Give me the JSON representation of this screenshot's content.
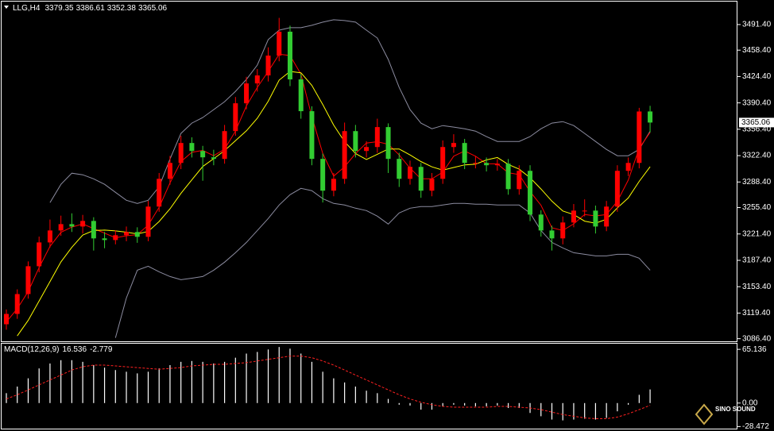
{
  "chart_data": [
    {
      "type": "candlestick",
      "title": "LLG,H4",
      "up_color": "#ff0000",
      "down_color": "#32cd32",
      "ylim": [
        3083,
        3521
      ],
      "yticks": [
        {
          "value": 3491.4,
          "label": "3491.40"
        },
        {
          "value": 3458.4,
          "label": "3458.40"
        },
        {
          "value": 3424.4,
          "label": "3424.40"
        },
        {
          "value": 3390.4,
          "label": "3390.40"
        },
        {
          "value": 3356.4,
          "label": "3356.40"
        },
        {
          "value": 3322.4,
          "label": "3322.40"
        },
        {
          "value": 3288.4,
          "label": "3288.40"
        },
        {
          "value": 3255.4,
          "label": "3255.40"
        },
        {
          "value": 3221.4,
          "label": "3221.40"
        },
        {
          "value": 3187.4,
          "label": "3187.40"
        },
        {
          "value": 3153.4,
          "label": "3153.40"
        },
        {
          "value": 3119.4,
          "label": "3119.40"
        },
        {
          "value": 3086.4,
          "label": "3086.40"
        }
      ],
      "candles": [
        [
          3105.0,
          3124.0,
          3098.0,
          3118.3
        ],
        [
          3118.3,
          3150.0,
          3112.0,
          3143.9
        ],
        [
          3143.9,
          3186.0,
          3138.0,
          3179.8
        ],
        [
          3179.8,
          3218.0,
          3172.0,
          3210.5
        ],
        [
          3210.5,
          3240.0,
          3204.0,
          3225.9
        ],
        [
          3225.9,
          3245.0,
          3219.0,
          3234.1
        ],
        [
          3234.1,
          3248.0,
          3224.0,
          3231.0
        ],
        [
          3231.0,
          3246.0,
          3222.0,
          3238.2
        ],
        [
          3238.2,
          3243.0,
          3200.0,
          3215.7
        ],
        [
          3215.7,
          3224.0,
          3203.0,
          3213.6
        ],
        [
          3213.6,
          3226.0,
          3208.0,
          3219.8
        ],
        [
          3219.8,
          3231.0,
          3212.0,
          3223.9
        ],
        [
          3223.9,
          3230.0,
          3210.0,
          3217.7
        ],
        [
          3217.7,
          3264.0,
          3212.0,
          3256.7
        ],
        [
          3256.7,
          3300.0,
          3250.0,
          3292.5
        ],
        [
          3292.5,
          3322.0,
          3285.0,
          3313.0
        ],
        [
          3313.0,
          3348.0,
          3305.0,
          3338.7
        ],
        [
          3338.7,
          3346.0,
          3320.0,
          3328.4
        ],
        [
          3328.4,
          3335.0,
          3290.0,
          3320.2
        ],
        [
          3320.2,
          3330.0,
          3310.0,
          3318.2
        ],
        [
          3318.2,
          3362.0,
          3312.0,
          3354.0
        ],
        [
          3354.0,
          3398.0,
          3348.0,
          3389.9
        ],
        [
          3389.9,
          3424.0,
          3382.0,
          3415.5
        ],
        [
          3415.5,
          3434.0,
          3405.0,
          3425.8
        ],
        [
          3425.8,
          3462.0,
          3418.0,
          3451.4
        ],
        [
          3451.4,
          3500.0,
          3444.0,
          3482.2
        ],
        [
          3482.2,
          3490.0,
          3412.0,
          3420.7
        ],
        [
          3420.7,
          3428.0,
          3370.0,
          3379.7
        ],
        [
          3379.7,
          3386.0,
          3310.0,
          3318.2
        ],
        [
          3318.2,
          3325.0,
          3262.0,
          3277.2
        ],
        [
          3277.2,
          3300.0,
          3270.0,
          3292.5
        ],
        [
          3292.5,
          3365.0,
          3286.0,
          3354.0
        ],
        [
          3354.0,
          3362.0,
          3320.0,
          3328.4
        ],
        [
          3328.4,
          3341.0,
          3320.0,
          3333.5
        ],
        [
          3333.5,
          3370.0,
          3326.0,
          3359.2
        ],
        [
          3359.2,
          3364.0,
          3300.0,
          3318.2
        ],
        [
          3318.2,
          3326.0,
          3282.0,
          3292.5
        ],
        [
          3292.5,
          3316.0,
          3285.0,
          3307.9
        ],
        [
          3307.9,
          3313.0,
          3268.0,
          3277.2
        ],
        [
          3277.2,
          3300.0,
          3270.0,
          3292.5
        ],
        [
          3292.5,
          3342.0,
          3286.0,
          3333.5
        ],
        [
          3333.5,
          3350.0,
          3326.0,
          3338.7
        ],
        [
          3338.7,
          3344.0,
          3305.0,
          3313.0
        ],
        [
          3313.0,
          3322.0,
          3306.0,
          3313.0
        ],
        [
          3313.0,
          3320.0,
          3302.0,
          3310.0
        ],
        [
          3310.0,
          3318.0,
          3303.0,
          3312.0
        ],
        [
          3312.0,
          3318.0,
          3272.0,
          3279.2
        ],
        [
          3279.2,
          3310.0,
          3272.0,
          3302.8
        ],
        [
          3302.8,
          3310.0,
          3238.0,
          3246.4
        ],
        [
          3246.4,
          3252.0,
          3218.0,
          3225.9
        ],
        [
          3225.9,
          3232.0,
          3200.0,
          3215.7
        ],
        [
          3215.7,
          3244.0,
          3208.0,
          3236.2
        ],
        [
          3236.2,
          3260.0,
          3230.0,
          3251.5
        ],
        [
          3251.5,
          3266.0,
          3244.0,
          3251.5
        ],
        [
          3251.5,
          3258.0,
          3222.0,
          3231.0
        ],
        [
          3231.0,
          3264.0,
          3225.0,
          3256.7
        ],
        [
          3256.7,
          3310.0,
          3250.0,
          3302.8
        ],
        [
          3302.8,
          3320.0,
          3296.0,
          3313.0
        ],
        [
          3313.0,
          3384.0,
          3306.0,
          3379.3
        ],
        [
          3379.35,
          3386.61,
          3352.38,
          3365.06
        ]
      ],
      "overlays": [
        {
          "color": "#8c8ca0",
          "values": [
            null,
            null,
            null,
            null,
            3261.8,
            3285.4,
            3299.7,
            3297.7,
            3292.5,
            3285.4,
            3275.1,
            3264.9,
            3260.8,
            3264.9,
            3282.3,
            3318.2,
            3351.0,
            3364.3,
            3371.5,
            3381.7,
            3392.0,
            3405.3,
            3420.7,
            3439.1,
            3472.0,
            3484.2,
            3487.3,
            3487.3,
            3490.4,
            3494.5,
            3497.6,
            3496.5,
            3494.5,
            3484.2,
            3474.0,
            3446.3,
            3410.4,
            3381.7,
            3364.3,
            3357.1,
            3361.2,
            3359.2,
            3357.1,
            3354.0,
            3346.9,
            3340.7,
            3340.7,
            3340.7,
            3346.9,
            3357.1,
            3364.3,
            3366.3,
            3361.2,
            3351.0,
            3340.7,
            3330.5,
            3322.3,
            3322.3,
            3330.5,
            3354.0
          ]
        },
        {
          "color": "#8c8ca0",
          "values": [
            null,
            null,
            null,
            null,
            null,
            null,
            null,
            null,
            null,
            null,
            3087.5,
            3138.8,
            3174.7,
            3179.8,
            3172.6,
            3166.5,
            3162.4,
            3164.4,
            3166.5,
            3174.7,
            3185.0,
            3197.2,
            3210.5,
            3225.9,
            3241.3,
            3258.7,
            3272.0,
            3280.2,
            3277.2,
            3266.9,
            3260.8,
            3258.7,
            3254.6,
            3251.5,
            3244.4,
            3234.1,
            3248.5,
            3254.6,
            3256.7,
            3256.7,
            3258.7,
            3260.8,
            3260.8,
            3259.8,
            3259.8,
            3258.7,
            3258.7,
            3258.7,
            3248.5,
            3225.9,
            3210.5,
            3203.4,
            3197.2,
            3195.2,
            3193.1,
            3193.1,
            3195.2,
            3195.2,
            3190.1,
            3174.7
          ]
        },
        {
          "color": "#ff0000",
          "values": [
            3108,
            3125,
            3147.3,
            3178.1,
            3205.4,
            3223.5,
            3230.3,
            3234.4,
            3228.3,
            3222.5,
            3216.4,
            3219.1,
            3220.5,
            3232.8,
            3255.6,
            3287.4,
            3314.7,
            3326.7,
            3329.1,
            3322.3,
            3330.8,
            3354.0,
            3386.5,
            3410.4,
            3430.9,
            3453.1,
            3451.4,
            3427.5,
            3372.9,
            3325.0,
            3296.0,
            3307.9,
            3325.0,
            3338.6,
            3340.4,
            3337.0,
            3323.3,
            3306.2,
            3292.5,
            3292.5,
            3301.1,
            3321.6,
            3328.4,
            3321.6,
            3312.0,
            3311.7,
            3300.4,
            3298.0,
            3276.1,
            3258.4,
            3229.3,
            3225.9,
            3234.5,
            3246.4,
            3244.7,
            3246.4,
            3263.5,
            3290.8,
            3331.7,
            3352.5
          ]
        },
        {
          "color": "#ffff00",
          "values": [
            null,
            3090,
            3110,
            3135,
            3160,
            3185.4,
            3204.2,
            3219.9,
            3225.9,
            3226.4,
            3225.4,
            3223.7,
            3221.5,
            3224.6,
            3237.4,
            3253.9,
            3273.8,
            3291.2,
            3308.3,
            3318.5,
            3328.8,
            3341.6,
            3354.4,
            3370.6,
            3392.5,
            3419.8,
            3430.9,
            3429.2,
            3413.0,
            3388.2,
            3361.8,
            3340.4,
            3325.0,
            3317.3,
            3324.1,
            3331.0,
            3331.0,
            3323.3,
            3314.8,
            3307.9,
            3303.6,
            3307.1,
            3310.5,
            3311.3,
            3316.8,
            3320.0,
            3311.0,
            3305.0,
            3293.9,
            3279.4,
            3263.7,
            3251.0,
            3246.4,
            3237.9,
            3235.3,
            3240.4,
            3255.0,
            3267.8,
            3289.1,
            3308.0
          ]
        }
      ]
    },
    {
      "type": "macd",
      "title": "MACD(12,26,9)",
      "ylim": [
        -31,
        72
      ],
      "yticks": [
        65.136,
        {
          "value": 0,
          "label": "0.00"
        },
        -28.472
      ],
      "histogram": {
        "color": "#ffffff",
        "values": [
          12,
          20,
          30,
          42,
          48,
          52,
          52,
          50,
          46,
          43,
          40,
          38,
          36,
          38,
          42,
          46,
          50,
          51,
          50,
          48,
          50,
          55,
          60,
          62,
          65,
          68,
          66,
          60,
          50,
          38,
          30,
          25,
          20,
          15,
          12,
          5,
          -2,
          -3,
          -8,
          -8,
          -4,
          -2,
          -3,
          -4,
          -4,
          -3,
          -6,
          -6,
          -12,
          -16,
          -20,
          -21,
          -20,
          -19,
          -20,
          -18,
          -10,
          -2,
          10,
          16.536
        ]
      },
      "signal": {
        "color": "#ff2020",
        "values": [
          5,
          10,
          16,
          22,
          28,
          34,
          40,
          44,
          46,
          46,
          45,
          44,
          43,
          42,
          41,
          42,
          43,
          45,
          46,
          47,
          47,
          48,
          49,
          51,
          53,
          55,
          57,
          57,
          55,
          51,
          46,
          40,
          34,
          28,
          22,
          16,
          10,
          5,
          1,
          -2,
          -4,
          -5,
          -5,
          -5,
          -5,
          -4,
          -4,
          -5,
          -6,
          -8,
          -11,
          -14,
          -16,
          -18,
          -19,
          -19,
          -17,
          -13,
          -8,
          -2.779
        ]
      }
    }
  ],
  "watermark": "SINO SOUND"
}
